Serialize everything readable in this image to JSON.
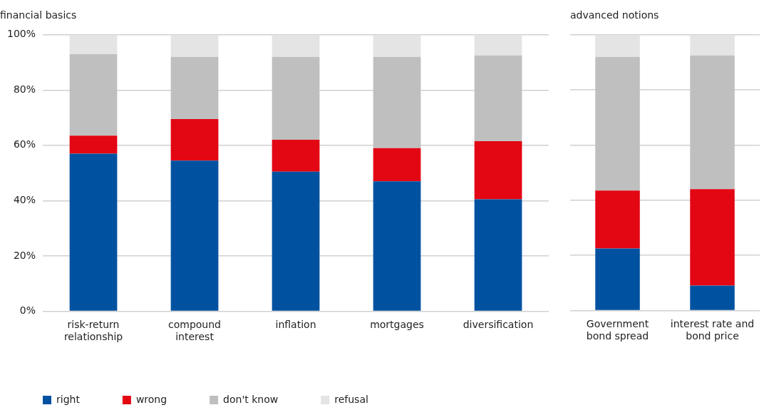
{
  "chart_data": [
    {
      "type": "bar",
      "title": "financial basics",
      "stacked": true,
      "categories": [
        "risk-return\nrelationship",
        "compound\ninterest",
        "inflation",
        "mortgages",
        "diversification"
      ],
      "series": [
        {
          "name": "right",
          "color": "#0052a0",
          "values": [
            57,
            54.5,
            50.5,
            47,
            40.5
          ]
        },
        {
          "name": "wrong",
          "color": "#e30613",
          "values": [
            6.5,
            15,
            11.5,
            12,
            21
          ]
        },
        {
          "name": "don't know",
          "color": "#bfbfbf",
          "values": [
            29.5,
            22.5,
            30,
            33,
            31
          ]
        },
        {
          "name": "refusal",
          "color": "#e4e4e4",
          "values": [
            7,
            8,
            8,
            8,
            7.5
          ]
        }
      ],
      "ylim": [
        0,
        100
      ],
      "yticks": [
        {
          "value": 0,
          "label": "0%"
        },
        {
          "value": 20,
          "label": "20%"
        },
        {
          "value": 40,
          "label": "40%"
        },
        {
          "value": 60,
          "label": "60%"
        },
        {
          "value": 80,
          "label": "80%"
        },
        {
          "value": 100,
          "label": "100%"
        }
      ],
      "grid": "y",
      "legend": "bottom"
    },
    {
      "type": "bar",
      "title": "advanced notions",
      "stacked": true,
      "categories": [
        "Government\nbond spread",
        "interest rate and\nbond price"
      ],
      "series": [
        {
          "color": "#0052a0",
          "values": [
            22.5,
            9
          ]
        },
        {
          "color": "#e30613",
          "values": [
            21,
            35
          ]
        },
        {
          "color": "#bfbfbf",
          "values": [
            48.5,
            48.5
          ]
        },
        {
          "color": "#e4e4e4",
          "values": [
            8,
            7.5
          ]
        }
      ],
      "ylim": [
        0,
        100
      ],
      "yticks": [
        {
          "value": 0,
          "label": null
        },
        {
          "value": 20,
          "label": null
        },
        {
          "value": 40,
          "label": null
        },
        {
          "value": 60,
          "label": null
        },
        {
          "value": 80,
          "label": null
        },
        {
          "value": 100,
          "label": null
        }
      ],
      "grid": "y",
      "tick_labels": "x"
    }
  ]
}
